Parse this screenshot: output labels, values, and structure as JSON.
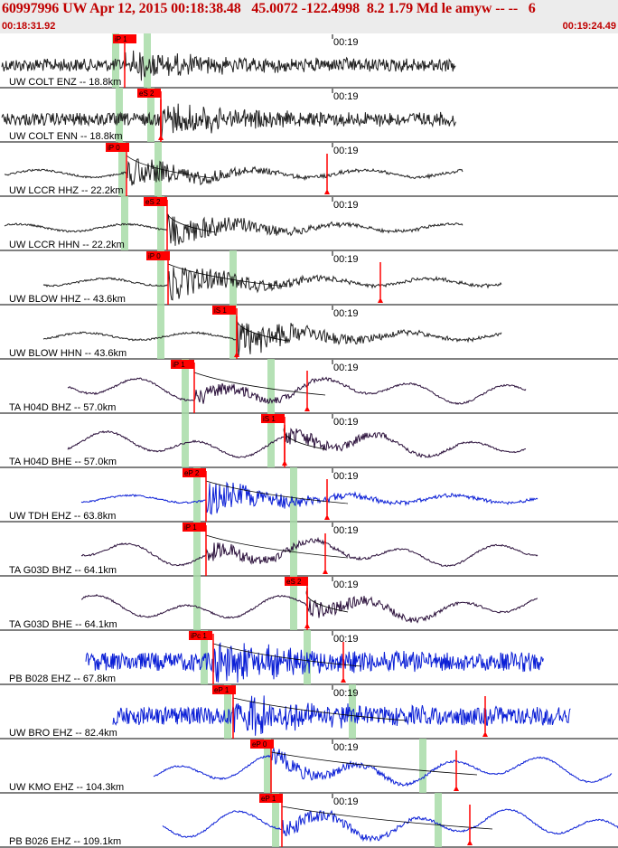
{
  "header": {
    "title": "60997996 UW Apr 12, 2015 00:18:38.48   45.0072 -122.4998  8.2 1.79 Md le amyw -- --   6",
    "start_time": "00:18:31.92",
    "end_time": "00:19:24.49"
  },
  "colors": {
    "header_bg": "#ececec",
    "header_text": "#c00000",
    "pick_marker": "#ff0000",
    "window_band": "#a8dca8",
    "trace_black": "#222222",
    "trace_purple": "#2a0f3a",
    "trace_blue": "#0b1fd6",
    "synthetic": "#cc0000"
  },
  "chart_data": {
    "type": "line",
    "title": "60997996 UW Apr 12, 2015 00:18:38.48   45.0072 -122.4998  8.2 1.79 Md le amyw -- --   6",
    "x_range": [
      "00:18:31.92",
      "00:19:24.49"
    ],
    "minute_tick_label": "00:19",
    "series": [
      {
        "name": "UW COLT ENZ -- 18.8km",
        "pick": "iP 1",
        "color": "black",
        "style": "noisy"
      },
      {
        "name": "UW COLT ENN -- 18.8km",
        "pick": "eS 2",
        "color": "black",
        "style": "noisy"
      },
      {
        "name": "UW LCCR HHZ -- 22.2km",
        "pick": "iP 0",
        "color": "black",
        "style": "event"
      },
      {
        "name": "UW LCCR HHN -- 22.2km",
        "pick": "eS 2",
        "color": "black",
        "style": "event"
      },
      {
        "name": "UW BLOW HHZ -- 43.6km",
        "pick": "iP 0",
        "color": "black",
        "style": "event"
      },
      {
        "name": "UW BLOW HHN -- 43.6km",
        "pick": "iS 1",
        "color": "black",
        "style": "event"
      },
      {
        "name": "TA H04D BHZ -- 57.0km",
        "pick": "iP 1",
        "color": "purple",
        "style": "long"
      },
      {
        "name": "TA H04D BHE -- 57.0km",
        "pick": "iS 1",
        "color": "purple",
        "style": "long"
      },
      {
        "name": "UW TDH EHZ -- 63.8km",
        "pick": "eP 2",
        "color": "blue",
        "style": "event"
      },
      {
        "name": "TA G03D BHZ -- 64.1km",
        "pick": "iP 1",
        "color": "purple",
        "style": "long"
      },
      {
        "name": "TA G03D BHE -- 64.1km",
        "pick": "eS 2",
        "color": "purple",
        "style": "long"
      },
      {
        "name": "PB B028 EHZ -- 67.8km",
        "pick": "iPc 1",
        "color": "blue",
        "style": "noisy"
      },
      {
        "name": "UW BRO EHZ -- 82.4km",
        "pick": "eP 1",
        "color": "blue",
        "style": "noisy"
      },
      {
        "name": "UW KMO EHZ -- 104.3km",
        "pick": "eP 0",
        "color": "blue",
        "style": "long"
      },
      {
        "name": "PB B026 EHZ -- 109.1km",
        "pick": "eP 1",
        "color": "blue",
        "style": "long"
      }
    ]
  }
}
